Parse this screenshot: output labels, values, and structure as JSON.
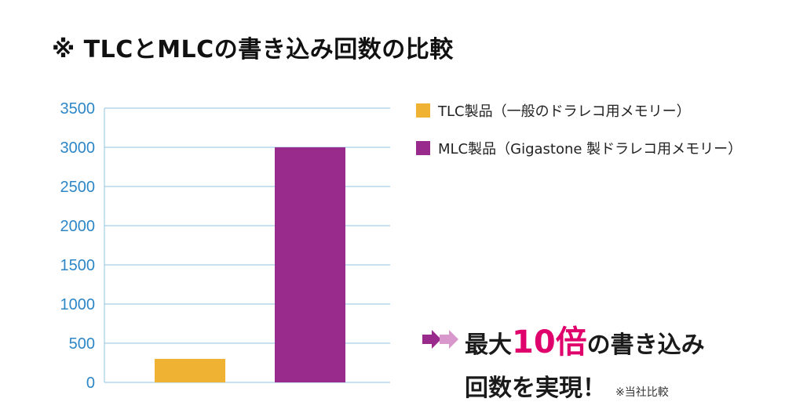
{
  "title": "※ TLCとMLCの書き込み回数の比較",
  "chart_data": {
    "type": "bar",
    "categories": [
      "TLC製品（一般のドラレコ用メモリー）",
      "MLC製品（Gigastone 製ドラレコ用メモリー）"
    ],
    "values": [
      300,
      3000
    ],
    "colors": [
      "#F0B233",
      "#992B8C"
    ],
    "ylim": [
      0,
      3500
    ],
    "yticks": [
      0,
      500,
      1000,
      1500,
      2000,
      2500,
      3000,
      3500
    ],
    "grid": true,
    "grid_color": "#8FC3E3",
    "tick_color": "#2D86C6",
    "legend_position": "right"
  },
  "legend": [
    {
      "label": "TLC製品（一般のドラレコ用メモリー）",
      "color": "#F0B233"
    },
    {
      "label": "MLC製品（Gigastone 製ドラレコ用メモリー）",
      "color": "#992B8C"
    }
  ],
  "callout": {
    "prefix": "最大",
    "highlight": "10倍",
    "suffix": "の書き込み",
    "line2": "回数を実現！",
    "note": "※当社比較",
    "arrow_colors": [
      "#992B8C",
      "#D998CC"
    ]
  }
}
